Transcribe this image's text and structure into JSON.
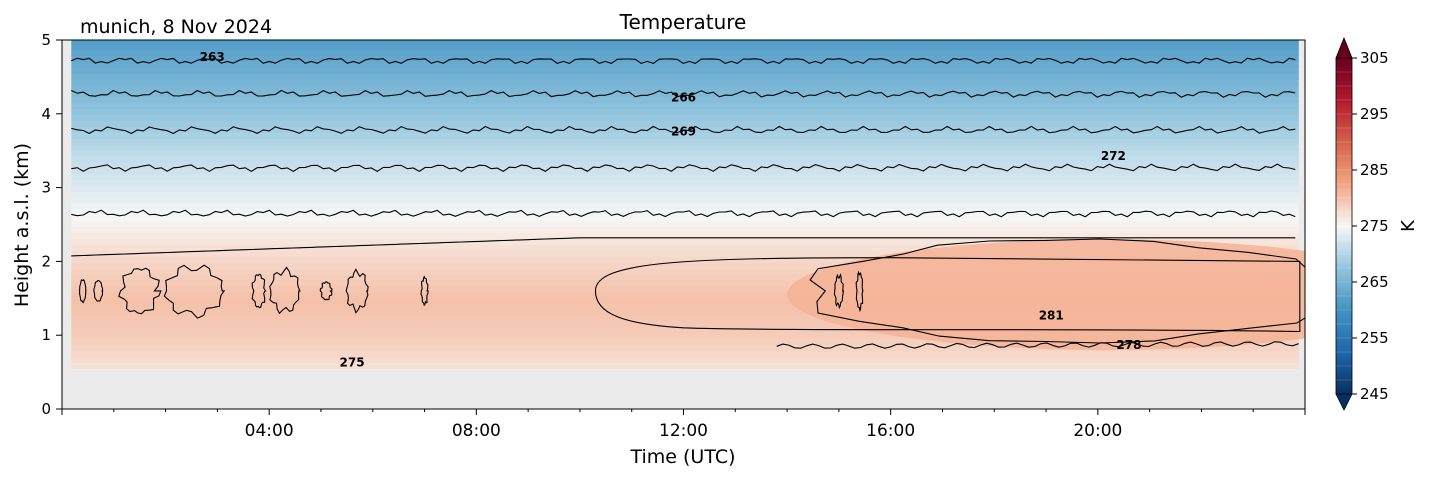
{
  "chart_data": {
    "type": "heatmap",
    "title": "Temperature",
    "subtitle": "munich, 8 Nov 2024",
    "xlabel": "Time (UTC)",
    "ylabel": "Height a.s.l. (km)",
    "xlim_hours": [
      0,
      24
    ],
    "ylim": [
      0,
      5
    ],
    "x_ticks": [
      {
        "hour": 4,
        "label": "04:00"
      },
      {
        "hour": 8,
        "label": "08:00"
      },
      {
        "hour": 12,
        "label": "12:00"
      },
      {
        "hour": 16,
        "label": "16:00"
      },
      {
        "hour": 20,
        "label": "20:00"
      }
    ],
    "y_ticks": [
      0,
      1,
      2,
      3,
      4,
      5
    ],
    "colorbar": {
      "label": "K",
      "range": [
        245,
        305
      ],
      "ticks": [
        245,
        255,
        265,
        275,
        285,
        295,
        305
      ],
      "colormap": "RdBu_r",
      "extend": "both"
    },
    "missing_data_below_km": 0.55,
    "temperature_profile": [
      {
        "height_km": 0.55,
        "temp_K": 277
      },
      {
        "height_km": 1.0,
        "temp_K": 279
      },
      {
        "height_km": 1.5,
        "temp_K": 280
      },
      {
        "height_km": 2.0,
        "temp_K": 278
      },
      {
        "height_km": 2.5,
        "temp_K": 275.5
      },
      {
        "height_km": 3.0,
        "temp_K": 273
      },
      {
        "height_km": 3.5,
        "temp_K": 270.5
      },
      {
        "height_km": 4.0,
        "temp_K": 267.5
      },
      {
        "height_km": 4.5,
        "temp_K": 264.5
      },
      {
        "height_km": 5.0,
        "temp_K": 261.5
      }
    ],
    "contours": [
      {
        "level": 263,
        "height_km": 4.72
      },
      {
        "level": 266,
        "height_km": 4.27
      },
      {
        "level": 269,
        "height_km": 3.78
      },
      {
        "level": 272,
        "height_km": 3.27
      },
      {
        "level": 275,
        "height_km": 2.65
      },
      {
        "level": 278,
        "height_km": 2.32
      },
      {
        "level": 278,
        "height_km": 0.85
      },
      {
        "level": 281,
        "height_km": 1.6
      }
    ],
    "contour_labels": [
      {
        "text": "263",
        "hour": 2.9,
        "height_km": 4.77
      },
      {
        "text": "266",
        "hour": 12.0,
        "height_km": 4.22
      },
      {
        "text": "269",
        "hour": 12.0,
        "height_km": 3.76
      },
      {
        "text": "272",
        "hour": 20.3,
        "height_km": 3.43
      },
      {
        "text": "275",
        "hour": 5.6,
        "height_km": 0.63
      },
      {
        "text": "281",
        "hour": 19.1,
        "height_km": 1.27
      },
      {
        "text": "278",
        "hour": 20.6,
        "height_km": 0.87
      }
    ]
  }
}
